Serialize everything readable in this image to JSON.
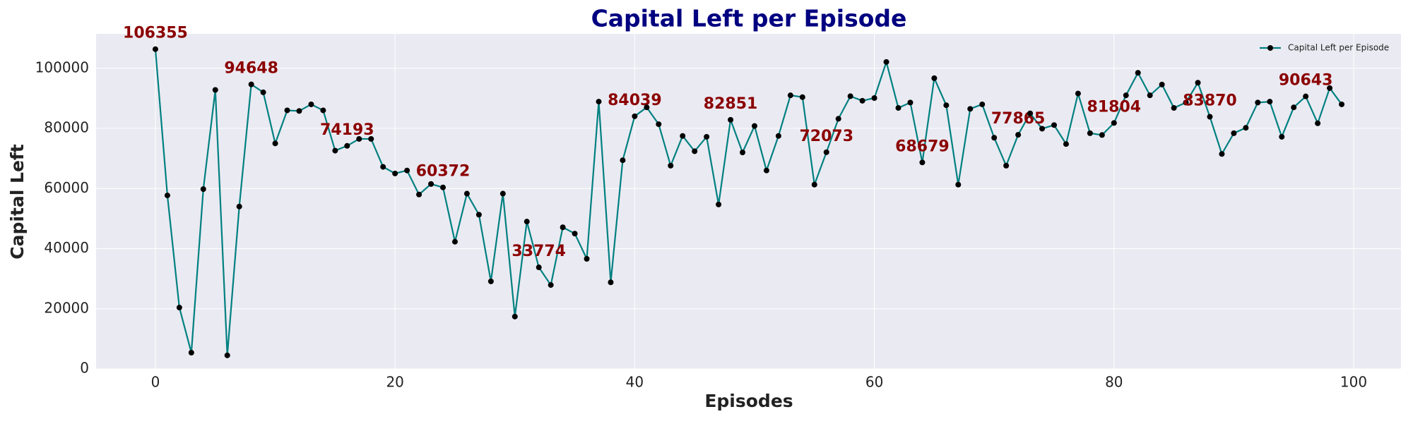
{
  "chart_data": {
    "type": "line",
    "title": "Capital Left per Episode",
    "xlabel": "Episodes",
    "ylabel": "Capital Left",
    "x": [
      0,
      1,
      2,
      3,
      4,
      5,
      6,
      7,
      8,
      9,
      10,
      11,
      12,
      13,
      14,
      15,
      16,
      17,
      18,
      19,
      20,
      21,
      22,
      23,
      24,
      25,
      26,
      27,
      28,
      29,
      30,
      31,
      32,
      33,
      34,
      35,
      36,
      37,
      38,
      39,
      40,
      41,
      42,
      43,
      44,
      45,
      46,
      47,
      48,
      49,
      50,
      51,
      52,
      53,
      54,
      55,
      56,
      57,
      58,
      59,
      60,
      61,
      62,
      63,
      64,
      65,
      66,
      67,
      68,
      69,
      70,
      71,
      72,
      73,
      74,
      75,
      76,
      77,
      78,
      79,
      80,
      81,
      82,
      83,
      84,
      85,
      86,
      87,
      88,
      89,
      90,
      91,
      92,
      93,
      94,
      95,
      96,
      97,
      98,
      99
    ],
    "series": [
      {
        "name": "Capital Left per Episode",
        "color": "#008080",
        "marker_color": "#000000",
        "values": [
          106355,
          57700,
          20400,
          5400,
          59800,
          92800,
          4500,
          54000,
          94648,
          92000,
          75000,
          86000,
          85800,
          88000,
          86000,
          72600,
          74193,
          76500,
          76500,
          67200,
          65000,
          66000,
          58000,
          61500,
          60372,
          42300,
          58300,
          51300,
          29100,
          58300,
          17400,
          49000,
          33774,
          27900,
          47100,
          45000,
          36600,
          88900,
          28800,
          69400,
          84039,
          87000,
          81400,
          67600,
          77500,
          72400,
          77200,
          54700,
          82851,
          72000,
          80800,
          66000,
          77500,
          91000,
          90400,
          61300,
          72073,
          83200,
          90700,
          89200,
          90100,
          102100,
          86800,
          88600,
          68679,
          96700,
          87700,
          61300,
          86500,
          88000,
          76900,
          67600,
          77865,
          85000,
          79900,
          81100,
          74800,
          91600,
          78400,
          77800,
          81804,
          91000,
          98500,
          91000,
          94600,
          86800,
          88600,
          95200,
          83870,
          71500,
          78400,
          80200,
          88600,
          88900,
          77200,
          87000,
          90643,
          81700,
          93400,
          88000
        ]
      }
    ],
    "label_every": 8,
    "label_color": "#8b0000",
    "xlim": [
      -4.95,
      103.95
    ],
    "ylim": [
      0,
      111450
    ],
    "xticks": [
      0,
      20,
      40,
      60,
      80,
      100
    ],
    "yticks": [
      0,
      20000,
      40000,
      60000,
      80000,
      100000
    ],
    "grid": true,
    "legend": "upper right"
  }
}
